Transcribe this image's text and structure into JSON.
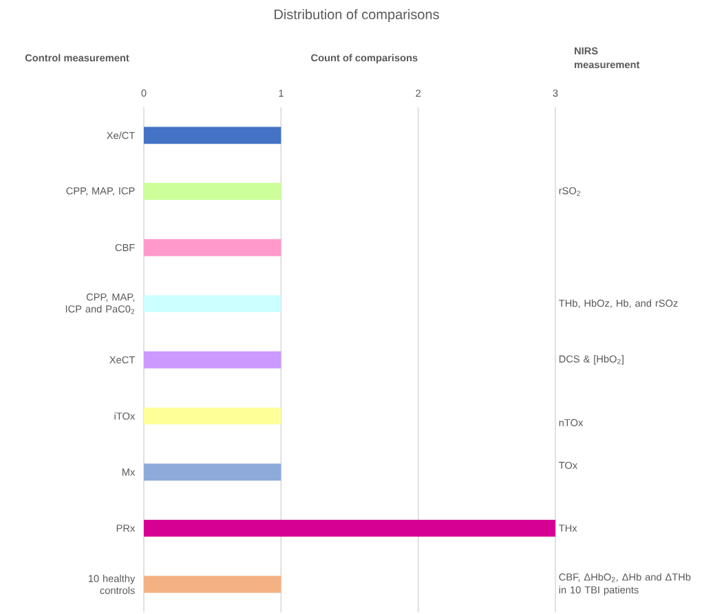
{
  "chart_data": {
    "type": "bar",
    "orientation": "horizontal",
    "title": "Distribution of comparisons",
    "xlabel": "Count of comparisons",
    "ylabel": "Control measurement",
    "y2label": "NIRS measurement",
    "categories": [
      "Xe/CT",
      "CPP, MAP, ICP",
      "CBF",
      "CPP, MAP, ICP and PaC0$_{2}$",
      "XeCT",
      "iTOx",
      "Mx",
      "PRx",
      "10 healthy controls"
    ],
    "values": [
      1,
      1,
      1,
      1,
      1,
      1,
      1,
      3,
      1
    ],
    "colors": [
      "#4472c4",
      "#ccff99",
      "#ff99cc",
      "#ccffff",
      "#cc99ff",
      "#ffff99",
      "#8eaadb",
      "#d60093",
      "#f4b183"
    ],
    "xlim": [
      0,
      3
    ],
    "xticks": [
      0,
      1,
      2,
      3
    ],
    "grid": "x",
    "annotations": [
      "rSO$_{2}$",
      "THb, HbOz, Hb, and rSOz",
      "DCS & [HbO$_{2}$]",
      "nTOx",
      "TOx",
      "THx",
      "CBF, ΔHbO$_{2}$, ΔHb and ΔTHb in 10 TBI patients"
    ]
  }
}
